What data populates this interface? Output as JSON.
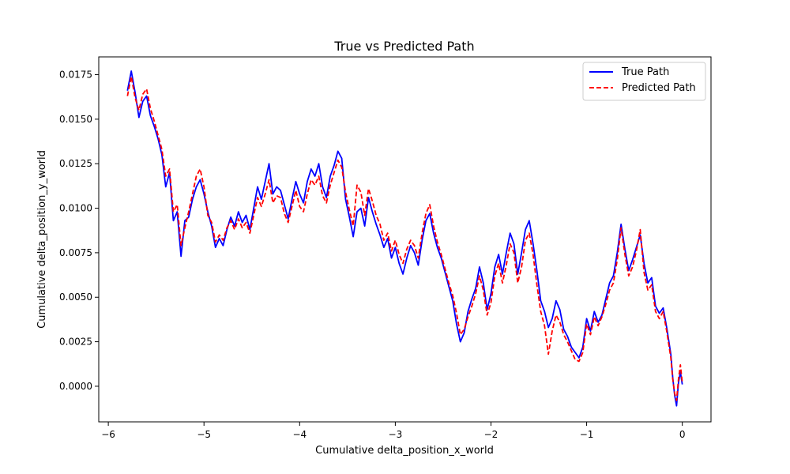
{
  "chart_data": {
    "type": "line",
    "title": "True vs Predicted Path",
    "xlabel": "Cumulative delta_position_x_world",
    "ylabel": "Cumulative delta_position_y_world",
    "xlim": [
      -6.1,
      0.3
    ],
    "ylim": [
      -0.002,
      0.0185
    ],
    "xticks": [
      -6,
      -5,
      -4,
      -3,
      -2,
      -1,
      0
    ],
    "xtick_labels": [
      "−6",
      "−5",
      "−4",
      "−3",
      "−2",
      "−1",
      "0"
    ],
    "yticks": [
      0.0,
      0.0025,
      0.005,
      0.0075,
      0.01,
      0.0125,
      0.015,
      0.0175
    ],
    "ytick_labels": [
      "0.0000",
      "0.0025",
      "0.0050",
      "0.0075",
      "0.0100",
      "0.0125",
      "0.0150",
      "0.0175"
    ],
    "grid": false,
    "legend_position": "top-right",
    "series": [
      {
        "name": "True Path",
        "color": "#0000ff",
        "dash": "solid",
        "x": [
          -5.8,
          -5.76,
          -5.72,
          -5.68,
          -5.64,
          -5.6,
          -5.56,
          -5.52,
          -5.48,
          -5.44,
          -5.4,
          -5.36,
          -5.32,
          -5.28,
          -5.24,
          -5.2,
          -5.16,
          -5.12,
          -5.08,
          -5.04,
          -5.0,
          -4.96,
          -4.92,
          -4.88,
          -4.84,
          -4.8,
          -4.76,
          -4.72,
          -4.68,
          -4.64,
          -4.6,
          -4.56,
          -4.52,
          -4.48,
          -4.44,
          -4.4,
          -4.36,
          -4.32,
          -4.28,
          -4.24,
          -4.2,
          -4.16,
          -4.12,
          -4.08,
          -4.04,
          -4.0,
          -3.96,
          -3.92,
          -3.88,
          -3.84,
          -3.8,
          -3.76,
          -3.72,
          -3.68,
          -3.64,
          -3.6,
          -3.56,
          -3.52,
          -3.48,
          -3.44,
          -3.4,
          -3.36,
          -3.32,
          -3.28,
          -3.24,
          -3.2,
          -3.16,
          -3.12,
          -3.08,
          -3.04,
          -3.0,
          -2.96,
          -2.92,
          -2.88,
          -2.84,
          -2.8,
          -2.76,
          -2.72,
          -2.68,
          -2.64,
          -2.6,
          -2.56,
          -2.52,
          -2.48,
          -2.44,
          -2.4,
          -2.36,
          -2.32,
          -2.28,
          -2.24,
          -2.2,
          -2.16,
          -2.12,
          -2.08,
          -2.04,
          -2.0,
          -1.96,
          -1.92,
          -1.88,
          -1.84,
          -1.8,
          -1.76,
          -1.72,
          -1.68,
          -1.64,
          -1.6,
          -1.56,
          -1.52,
          -1.48,
          -1.44,
          -1.4,
          -1.36,
          -1.32,
          -1.28,
          -1.24,
          -1.2,
          -1.16,
          -1.12,
          -1.08,
          -1.04,
          -1.0,
          -0.96,
          -0.92,
          -0.88,
          -0.84,
          -0.8,
          -0.76,
          -0.72,
          -0.68,
          -0.64,
          -0.6,
          -0.56,
          -0.52,
          -0.48,
          -0.44,
          -0.4,
          -0.36,
          -0.32,
          -0.28,
          -0.24,
          -0.2,
          -0.16,
          -0.12,
          -0.1,
          -0.08,
          -0.06,
          -0.04,
          -0.02,
          0.0
        ],
        "y": [
          0.0166,
          0.0177,
          0.0165,
          0.0151,
          0.016,
          0.0163,
          0.0152,
          0.0146,
          0.0139,
          0.013,
          0.0112,
          0.012,
          0.0093,
          0.0098,
          0.0073,
          0.0093,
          0.0095,
          0.0105,
          0.0112,
          0.0116,
          0.0108,
          0.0098,
          0.009,
          0.0078,
          0.0083,
          0.0079,
          0.0088,
          0.0095,
          0.009,
          0.0098,
          0.0092,
          0.0096,
          0.0088,
          0.01,
          0.0112,
          0.0105,
          0.0115,
          0.0125,
          0.0108,
          0.0112,
          0.011,
          0.0102,
          0.0094,
          0.0105,
          0.0115,
          0.0108,
          0.0103,
          0.0115,
          0.0122,
          0.0118,
          0.0125,
          0.0112,
          0.0106,
          0.0118,
          0.0124,
          0.0132,
          0.0128,
          0.0105,
          0.0095,
          0.0084,
          0.0098,
          0.01,
          0.009,
          0.0106,
          0.0098,
          0.0091,
          0.0085,
          0.0078,
          0.0083,
          0.0072,
          0.0078,
          0.0069,
          0.0063,
          0.0072,
          0.0079,
          0.0075,
          0.0068,
          0.0082,
          0.0093,
          0.0097,
          0.0086,
          0.0078,
          0.0072,
          0.0064,
          0.0056,
          0.0048,
          0.0035,
          0.0025,
          0.003,
          0.0042,
          0.0049,
          0.0055,
          0.0067,
          0.0058,
          0.0043,
          0.0052,
          0.0067,
          0.0074,
          0.0063,
          0.0075,
          0.0086,
          0.008,
          0.0063,
          0.0075,
          0.0088,
          0.0093,
          0.008,
          0.0065,
          0.0048,
          0.0042,
          0.0033,
          0.0038,
          0.0048,
          0.0043,
          0.0032,
          0.0028,
          0.0022,
          0.0019,
          0.0016,
          0.0022,
          0.0038,
          0.0031,
          0.0042,
          0.0036,
          0.004,
          0.0049,
          0.0058,
          0.0062,
          0.0075,
          0.0091,
          0.0077,
          0.0065,
          0.0071,
          0.0078,
          0.0085,
          0.0069,
          0.0058,
          0.0061,
          0.0045,
          0.0041,
          0.0044,
          0.0032,
          0.0018,
          0.0005,
          -0.0005,
          -0.0011,
          0.0002,
          0.0008,
          0.0001
        ],
        "_y_note": ""
      },
      {
        "name": "Predicted Path",
        "color": "#ff0000",
        "dash": "dashed",
        "x": [
          -5.8,
          -5.76,
          -5.72,
          -5.68,
          -5.64,
          -5.6,
          -5.56,
          -5.52,
          -5.48,
          -5.44,
          -5.4,
          -5.36,
          -5.32,
          -5.28,
          -5.24,
          -5.2,
          -5.16,
          -5.12,
          -5.08,
          -5.04,
          -5.0,
          -4.96,
          -4.92,
          -4.88,
          -4.84,
          -4.8,
          -4.76,
          -4.72,
          -4.68,
          -4.64,
          -4.6,
          -4.56,
          -4.52,
          -4.48,
          -4.44,
          -4.4,
          -4.36,
          -4.32,
          -4.28,
          -4.24,
          -4.2,
          -4.16,
          -4.12,
          -4.08,
          -4.04,
          -4.0,
          -3.96,
          -3.92,
          -3.88,
          -3.84,
          -3.8,
          -3.76,
          -3.72,
          -3.68,
          -3.64,
          -3.6,
          -3.56,
          -3.52,
          -3.48,
          -3.44,
          -3.4,
          -3.36,
          -3.32,
          -3.28,
          -3.24,
          -3.2,
          -3.16,
          -3.12,
          -3.08,
          -3.04,
          -3.0,
          -2.96,
          -2.92,
          -2.88,
          -2.84,
          -2.8,
          -2.76,
          -2.72,
          -2.68,
          -2.64,
          -2.6,
          -2.56,
          -2.52,
          -2.48,
          -2.44,
          -2.4,
          -2.36,
          -2.32,
          -2.28,
          -2.24,
          -2.2,
          -2.16,
          -2.12,
          -2.08,
          -2.04,
          -2.0,
          -1.96,
          -1.92,
          -1.88,
          -1.84,
          -1.8,
          -1.76,
          -1.72,
          -1.68,
          -1.64,
          -1.6,
          -1.56,
          -1.52,
          -1.48,
          -1.44,
          -1.4,
          -1.36,
          -1.32,
          -1.28,
          -1.24,
          -1.2,
          -1.16,
          -1.12,
          -1.08,
          -1.04,
          -1.0,
          -0.96,
          -0.92,
          -0.88,
          -0.84,
          -0.8,
          -0.76,
          -0.72,
          -0.68,
          -0.64,
          -0.6,
          -0.56,
          -0.52,
          -0.48,
          -0.44,
          -0.4,
          -0.36,
          -0.32,
          -0.28,
          -0.24,
          -0.2,
          -0.16,
          -0.12,
          -0.1,
          -0.08,
          -0.06,
          -0.04,
          -0.02,
          0.0
        ],
        "y": [
          0.0163,
          0.0174,
          0.0162,
          0.0155,
          0.0164,
          0.0167,
          0.0156,
          0.0149,
          0.0141,
          0.0133,
          0.0118,
          0.0122,
          0.0098,
          0.0102,
          0.0079,
          0.0089,
          0.0098,
          0.0108,
          0.0118,
          0.0122,
          0.0112,
          0.0096,
          0.0092,
          0.0081,
          0.0085,
          0.0082,
          0.0089,
          0.0093,
          0.0088,
          0.0094,
          0.0089,
          0.0092,
          0.0086,
          0.0096,
          0.0106,
          0.0101,
          0.0108,
          0.0116,
          0.0103,
          0.0107,
          0.0106,
          0.0097,
          0.0092,
          0.0101,
          0.011,
          0.0101,
          0.0098,
          0.0108,
          0.0116,
          0.0113,
          0.0118,
          0.0107,
          0.0103,
          0.0113,
          0.012,
          0.0127,
          0.0123,
          0.0109,
          0.0099,
          0.009,
          0.0113,
          0.0109,
          0.0096,
          0.0111,
          0.0104,
          0.0096,
          0.0091,
          0.0082,
          0.0086,
          0.0076,
          0.0082,
          0.0074,
          0.0069,
          0.0077,
          0.0082,
          0.0079,
          0.0072,
          0.0086,
          0.0097,
          0.0102,
          0.009,
          0.0081,
          0.0074,
          0.0066,
          0.0058,
          0.0051,
          0.0041,
          0.0029,
          0.0032,
          0.0039,
          0.0045,
          0.0052,
          0.0062,
          0.0054,
          0.004,
          0.0047,
          0.0062,
          0.0069,
          0.0058,
          0.0068,
          0.008,
          0.0075,
          0.0058,
          0.0067,
          0.0082,
          0.0086,
          0.0074,
          0.0057,
          0.0042,
          0.0034,
          0.0018,
          0.0031,
          0.004,
          0.0036,
          0.0029,
          0.0025,
          0.002,
          0.0015,
          0.0014,
          0.0019,
          0.0035,
          0.0029,
          0.0039,
          0.0034,
          0.0039,
          0.0046,
          0.0054,
          0.0058,
          0.0071,
          0.0089,
          0.0074,
          0.0062,
          0.0067,
          0.0076,
          0.0088,
          0.0064,
          0.0054,
          0.0057,
          0.0042,
          0.0038,
          0.0042,
          0.003,
          0.0016,
          0.0004,
          -0.0004,
          -0.0008,
          0.0004,
          0.0012,
          0.0002
        ]
      }
    ]
  }
}
